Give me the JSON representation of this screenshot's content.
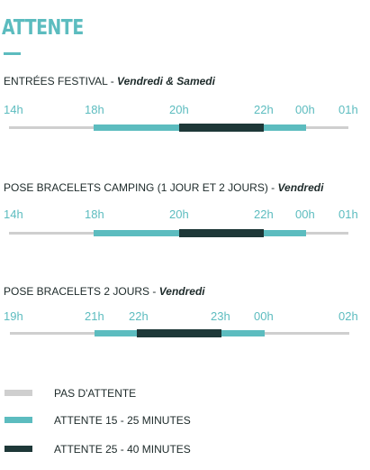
{
  "title": "ATTENTE",
  "colors": {
    "accent": "#5cbcbf",
    "dark": "#1e3838",
    "none": "#cfcfcf"
  },
  "sections": [
    {
      "label_main": "ENTRÉES FESTIVAL - ",
      "label_days": "Vendredi & Samedi",
      "ticks": [
        "14h",
        "18h",
        "20h",
        "22h",
        "00h",
        "01h"
      ],
      "waits": [
        {
          "from": "18h",
          "to": "20h",
          "level": "ATTENTE 15 - 25 MINUTES"
        },
        {
          "from": "20h",
          "to": "22h",
          "level": "ATTENTE 25 - 40 MINUTES"
        },
        {
          "from": "22h",
          "to": "00h",
          "level": "ATTENTE 15 - 25 MINUTES"
        }
      ]
    },
    {
      "label_main": "POSE BRACELETS CAMPING (1 JOUR ET 2 JOURS) - ",
      "label_days": "Vendredi",
      "ticks": [
        "14h",
        "18h",
        "20h",
        "22h",
        "00h",
        "01h"
      ],
      "waits": [
        {
          "from": "18h",
          "to": "20h",
          "level": "ATTENTE 15 - 25 MINUTES"
        },
        {
          "from": "20h",
          "to": "22h",
          "level": "ATTENTE 25 - 40 MINUTES"
        },
        {
          "from": "22h",
          "to": "00h",
          "level": "ATTENTE 15 - 25 MINUTES"
        }
      ]
    },
    {
      "label_main": "POSE BRACELETS 2 JOURS - ",
      "label_days": "Vendredi",
      "ticks": [
        "19h",
        "21h",
        "22h",
        "23h",
        "00h",
        "02h"
      ],
      "waits": [
        {
          "from": "21h",
          "to": "22h",
          "level": "ATTENTE 15 - 25 MINUTES"
        },
        {
          "from": "22h",
          "to": "23h",
          "level": "ATTENTE 25 - 40 MINUTES"
        },
        {
          "from": "23h",
          "to": "00h",
          "level": "ATTENTE 15 - 25 MINUTES"
        }
      ]
    }
  ],
  "legend": [
    {
      "label": "PAS D'ATTENTE",
      "color": "#cfcfcf"
    },
    {
      "label": "ATTENTE 15 - 25 MINUTES",
      "color": "#5cbcbf"
    },
    {
      "label": "ATTENTE 25 - 40 MINUTES",
      "color": "#1e3838"
    }
  ]
}
